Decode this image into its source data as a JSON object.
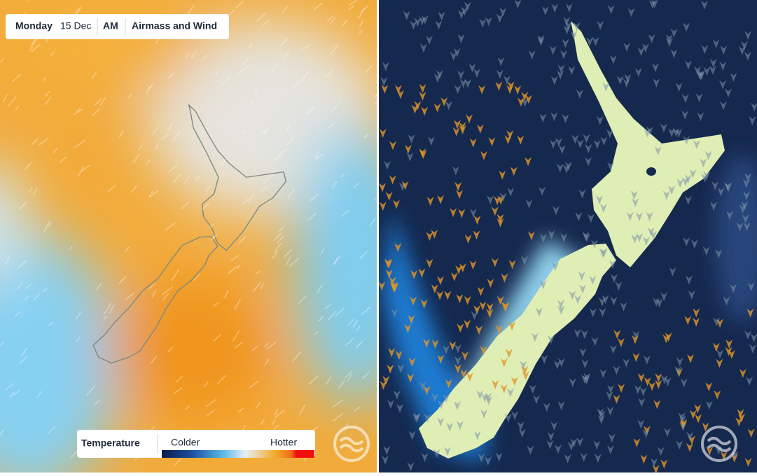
{
  "header": {
    "day": "Monday",
    "date": "15 Dec",
    "period": "AM",
    "layer": "Airmass and Wind"
  },
  "legend": {
    "title": "Temperature",
    "low_label": "Colder",
    "high_label": "Hotter"
  }
}
